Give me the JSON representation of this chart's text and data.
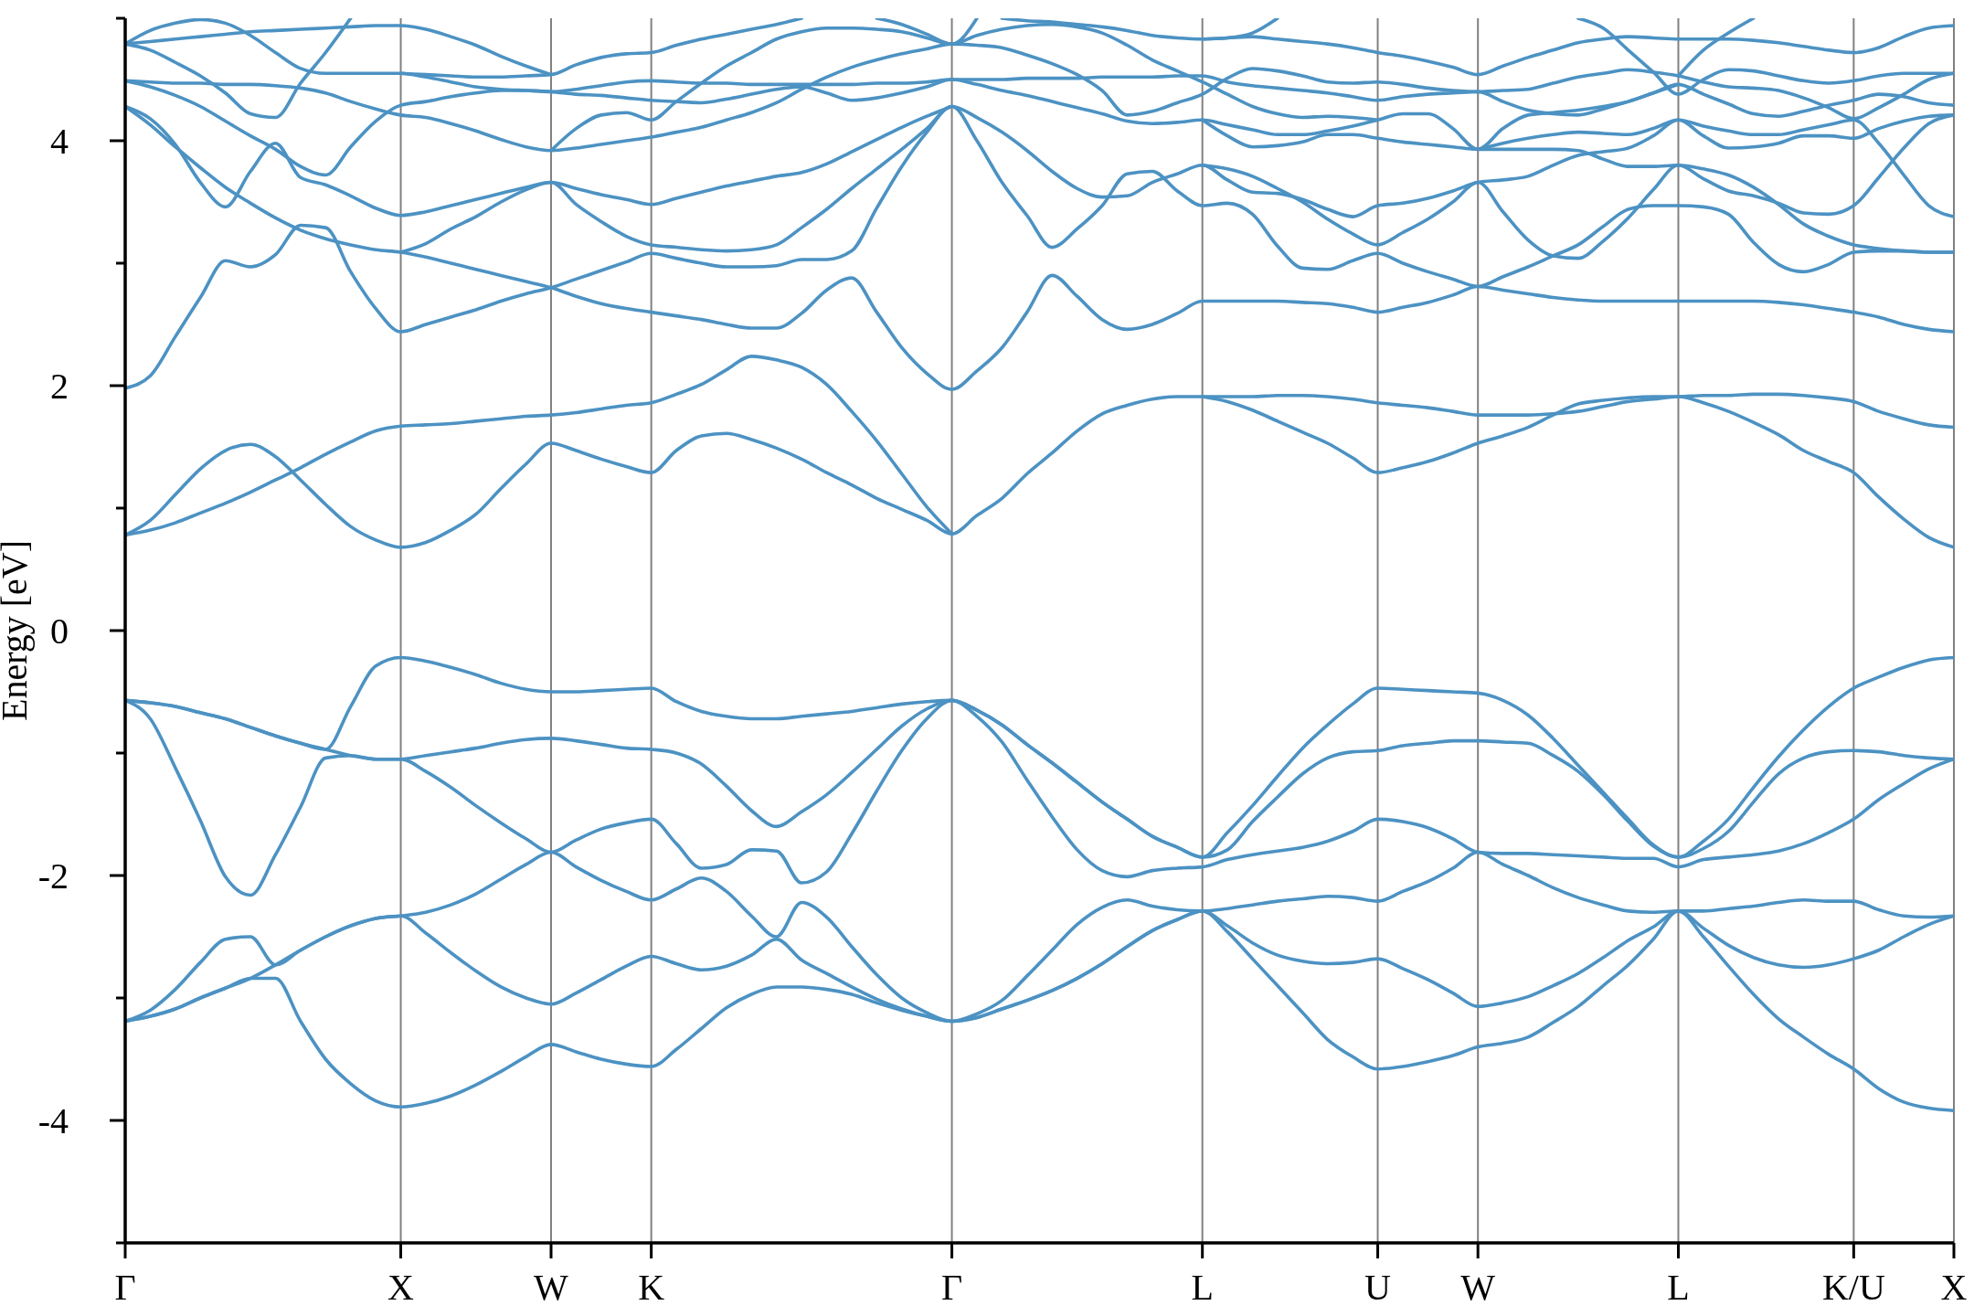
{
  "chart_data": {
    "type": "line",
    "ylabel": "Energy [eV]",
    "grid": "x",
    "categories": [
      "Γ",
      null,
      null,
      null,
      null,
      null,
      null,
      null,
      null,
      null,
      null,
      "X",
      null,
      null,
      null,
      null,
      null,
      "W",
      null,
      null,
      null,
      "K",
      null,
      null,
      null,
      null,
      null,
      null,
      null,
      null,
      null,
      null,
      null,
      "Γ",
      null,
      null,
      null,
      null,
      null,
      null,
      null,
      null,
      null,
      "L",
      null,
      null,
      null,
      null,
      null,
      null,
      "U",
      null,
      null,
      null,
      "W",
      null,
      null,
      null,
      null,
      null,
      null,
      null,
      "L",
      null,
      null,
      null,
      null,
      null,
      null,
      "K/U",
      null,
      null,
      null,
      "X"
    ],
    "ylim": [
      -5,
      5
    ],
    "yticks": [
      {
        "value": -5,
        "label": null
      },
      -4,
      {
        "value": -3,
        "label": null
      },
      -2,
      {
        "value": -1,
        "label": null
      },
      0,
      {
        "value": 1,
        "label": null
      },
      2,
      {
        "value": 3,
        "label": null
      },
      4,
      {
        "value": 5,
        "label": null
      }
    ],
    "series": [
      {
        "color": "#4c92c3",
        "values": [
          -3.19,
          -3.15,
          -3.09,
          -3,
          -2.92,
          -2.84,
          -2.84,
          -3.19,
          -3.5,
          -3.7,
          -3.84,
          -3.89,
          -3.86,
          -3.8,
          -3.71,
          -3.6,
          -3.48,
          -3.38,
          -3.44,
          -3.5,
          -3.54,
          -3.56,
          -3.42,
          -3.25,
          -3.08,
          -2.97,
          -2.91,
          -2.91,
          -2.93,
          -2.97,
          -3.04,
          -3.1,
          -3.15,
          -3.19,
          -3.16,
          -3.09,
          -3.02,
          -2.94,
          -2.84,
          -2.72,
          -2.58,
          -2.45,
          -2.36,
          -2.29,
          -2.46,
          -2.68,
          -2.9,
          -3.12,
          -3.34,
          -3.48,
          -3.58,
          -3.56,
          -3.52,
          -3.47,
          -3.4,
          -3.37,
          -3.32,
          -3.2,
          -3.07,
          -2.9,
          -2.73,
          -2.52,
          -2.29,
          -2.5,
          -2.74,
          -2.97,
          -3.17,
          -3.32,
          -3.46,
          -3.58,
          -3.74,
          -3.85,
          -3.9,
          -3.92
        ]
      },
      {
        "color": "#4c92c3",
        "values": [
          -3.19,
          -3.15,
          -3.09,
          -3,
          -2.92,
          -2.84,
          -2.73,
          -2.61,
          -2.5,
          -2.41,
          -2.35,
          -2.33,
          -2.47,
          -2.63,
          -2.78,
          -2.91,
          -3,
          -3.05,
          -2.96,
          -2.85,
          -2.74,
          -2.66,
          -2.72,
          -2.77,
          -2.74,
          -2.65,
          -2.52,
          -2.69,
          -2.8,
          -2.91,
          -3.01,
          -3.09,
          -3.15,
          -3.19,
          -3.16,
          -3.09,
          -3.02,
          -2.94,
          -2.84,
          -2.72,
          -2.58,
          -2.45,
          -2.36,
          -2.29,
          -2.41,
          -2.55,
          -2.65,
          -2.7,
          -2.72,
          -2.71,
          -2.68,
          -2.76,
          -2.85,
          -2.96,
          -3.07,
          -3.04,
          -2.99,
          -2.9,
          -2.8,
          -2.67,
          -2.53,
          -2.42,
          -2.29,
          -2.43,
          -2.57,
          -2.67,
          -2.73,
          -2.75,
          -2.73,
          -2.68,
          -2.61,
          -2.5,
          -2.4,
          -2.33
        ]
      },
      {
        "color": "#4c92c3",
        "values": [
          -3.19,
          -3.1,
          -2.93,
          -2.71,
          -2.52,
          -2.5,
          -2.73,
          -2.61,
          -2.5,
          -2.41,
          -2.35,
          -2.33,
          -2.3,
          -2.24,
          -2.15,
          -2.03,
          -1.91,
          -1.81,
          -1.93,
          -2.04,
          -2.13,
          -2.2,
          -2.11,
          -2.02,
          -2.13,
          -2.33,
          -2.5,
          -2.22,
          -2.34,
          -2.58,
          -2.81,
          -3,
          -3.12,
          -3.19,
          -3.13,
          -3.02,
          -2.82,
          -2.61,
          -2.4,
          -2.26,
          -2.2,
          -2.25,
          -2.28,
          -2.29,
          -2.27,
          -2.24,
          -2.21,
          -2.19,
          -2.17,
          -2.18,
          -2.21,
          -2.13,
          -2.05,
          -1.94,
          -1.81,
          -1.91,
          -2,
          -2.1,
          -2.18,
          -2.24,
          -2.29,
          -2.3,
          -2.29,
          -2.29,
          -2.27,
          -2.25,
          -2.22,
          -2.2,
          -2.21,
          -2.21,
          -2.28,
          -2.33,
          -2.34,
          -2.33
        ]
      },
      {
        "color": "#4c92c3",
        "values": [
          -0.57,
          -0.72,
          -1.12,
          -1.55,
          -2.01,
          -2.16,
          -1.83,
          -1.44,
          -1.04,
          -1.02,
          -1.05,
          -1.05,
          -1.15,
          -1.28,
          -1.43,
          -1.57,
          -1.7,
          -1.81,
          -1.71,
          -1.62,
          -1.57,
          -1.54,
          -1.74,
          -1.94,
          -1.91,
          -1.79,
          -1.8,
          -2.06,
          -1.97,
          -1.66,
          -1.31,
          -0.98,
          -0.72,
          -0.57,
          -0.7,
          -0.91,
          -1.22,
          -1.52,
          -1.79,
          -1.96,
          -2.01,
          -1.96,
          -1.94,
          -1.93,
          -1.87,
          -1.83,
          -1.8,
          -1.77,
          -1.72,
          -1.64,
          -1.54,
          -1.56,
          -1.61,
          -1.7,
          -1.81,
          -1.82,
          -1.82,
          -1.83,
          -1.84,
          -1.85,
          -1.86,
          -1.86,
          -1.93,
          -1.87,
          -1.85,
          -1.83,
          -1.8,
          -1.74,
          -1.65,
          -1.54,
          -1.38,
          -1.25,
          -1.13,
          -1.05
        ]
      },
      {
        "color": "#4c92c3",
        "values": [
          -0.57,
          -0.59,
          -0.62,
          -0.67,
          -0.72,
          -0.79,
          -0.86,
          -0.92,
          -0.97,
          -1.02,
          -1.05,
          -1.05,
          -1.02,
          -0.99,
          -0.96,
          -0.92,
          -0.89,
          -0.88,
          -0.9,
          -0.93,
          -0.96,
          -0.97,
          -1,
          -1.09,
          -1.27,
          -1.47,
          -1.6,
          -1.48,
          -1.34,
          -1.16,
          -0.97,
          -0.78,
          -0.64,
          -0.57,
          -0.65,
          -0.77,
          -0.93,
          -1.08,
          -1.24,
          -1.4,
          -1.54,
          -1.68,
          -1.77,
          -1.85,
          -1.79,
          -1.56,
          -1.36,
          -1.17,
          -1.04,
          -0.99,
          -0.98,
          -0.94,
          -0.92,
          -0.9,
          -0.9,
          -0.91,
          -0.92,
          -1.02,
          -1.15,
          -1.34,
          -1.56,
          -1.76,
          -1.85,
          -1.78,
          -1.64,
          -1.4,
          -1.17,
          -1.04,
          -0.99,
          -0.98,
          -0.99,
          -1.02,
          -1.04,
          -1.05
        ]
      },
      {
        "color": "#4c92c3",
        "values": [
          -0.57,
          -0.59,
          -0.62,
          -0.67,
          -0.72,
          -0.79,
          -0.86,
          -0.92,
          -0.97,
          -0.62,
          -0.29,
          -0.22,
          -0.25,
          -0.3,
          -0.36,
          -0.43,
          -0.48,
          -0.5,
          -0.5,
          -0.49,
          -0.48,
          -0.47,
          -0.58,
          -0.66,
          -0.7,
          -0.72,
          -0.72,
          -0.7,
          -0.68,
          -0.66,
          -0.63,
          -0.6,
          -0.58,
          -0.57,
          -0.65,
          -0.77,
          -0.93,
          -1.08,
          -1.24,
          -1.4,
          -1.54,
          -1.68,
          -1.77,
          -1.85,
          -1.65,
          -1.43,
          -1.19,
          -0.96,
          -0.77,
          -0.6,
          -0.47,
          -0.48,
          -0.49,
          -0.5,
          -0.51,
          -0.57,
          -0.69,
          -0.88,
          -1.1,
          -1.32,
          -1.54,
          -1.75,
          -1.85,
          -1.72,
          -1.54,
          -1.28,
          -1.03,
          -0.81,
          -0.62,
          -0.47,
          -0.38,
          -0.3,
          -0.24,
          -0.22
        ]
      },
      {
        "color": "#4c92c3",
        "values": [
          0.78,
          0.9,
          1.11,
          1.32,
          1.47,
          1.52,
          1.42,
          1.23,
          1.03,
          0.85,
          0.74,
          0.68,
          0.72,
          0.82,
          0.95,
          1.16,
          1.36,
          1.53,
          1.47,
          1.4,
          1.34,
          1.29,
          1.47,
          1.59,
          1.61,
          1.56,
          1.49,
          1.4,
          1.29,
          1.19,
          1.08,
          0.99,
          0.9,
          0.79,
          0.94,
          1.08,
          1.28,
          1.45,
          1.63,
          1.77,
          1.84,
          1.89,
          1.91,
          1.91,
          1.91,
          1.91,
          1.92,
          1.92,
          1.91,
          1.89,
          1.86,
          1.84,
          1.82,
          1.79,
          1.76,
          1.76,
          1.76,
          1.77,
          1.79,
          1.83,
          1.87,
          1.89,
          1.91,
          1.86,
          1.79,
          1.7,
          1.6,
          1.47,
          1.38,
          1.29,
          1.09,
          0.91,
          0.76,
          0.68
        ]
      },
      {
        "color": "#4c92c3",
        "values": [
          0.78,
          0.82,
          0.88,
          0.96,
          1.04,
          1.13,
          1.23,
          1.33,
          1.44,
          1.54,
          1.63,
          1.67,
          1.68,
          1.69,
          1.71,
          1.73,
          1.75,
          1.76,
          1.78,
          1.81,
          1.84,
          1.86,
          1.93,
          2.01,
          2.13,
          2.24,
          2.21,
          2.15,
          2.01,
          1.79,
          1.55,
          1.28,
          1.01,
          0.79,
          null,
          null,
          null,
          null,
          null,
          null,
          null,
          null,
          null,
          null,
          null,
          null,
          null,
          null,
          null,
          null,
          null,
          null,
          null,
          null,
          null,
          null,
          null,
          null,
          null,
          null,
          null,
          null,
          null,
          null,
          null,
          null,
          null,
          null,
          null,
          null,
          null,
          null,
          null,
          null
        ]
      },
      {
        "color": "#4c92c3",
        "values": [
          1.98,
          2.08,
          2.4,
          2.72,
          3.02,
          2.97,
          3.07,
          3.31,
          3.29,
          2.93,
          2.63,
          2.44,
          2.5,
          2.56,
          2.62,
          2.69,
          2.75,
          2.8,
          2.87,
          2.94,
          3.01,
          3.08,
          3.04,
          3,
          2.97,
          2.97,
          2.98,
          3.03,
          3.03,
          3.1,
          3.45,
          3.79,
          4.07,
          4.28,
          4,
          3.66,
          3.39,
          3.13,
          3.28,
          3.47,
          3.73,
          3.75,
          3.59,
          3.47,
          3.49,
          3.4,
          3.14,
          2.96,
          2.95,
          3.02,
          3.08,
          3,
          2.93,
          2.87,
          2.81,
          2.89,
          2.97,
          3.06,
          3.15,
          3.3,
          3.44,
          3.47,
          3.47,
          3.46,
          3.4,
          3.17,
          2.99,
          2.93,
          2.99,
          3.09,
          3.1,
          3.1,
          3.09,
          3.09
        ]
      },
      {
        "color": "#4c92c3",
        "values": [
          4.28,
          4.13,
          3.95,
          3.78,
          3.62,
          3.49,
          3.37,
          3.27,
          3.2,
          3.15,
          3.11,
          3.09,
          3.05,
          3,
          2.95,
          2.9,
          2.85,
          2.8,
          2.73,
          2.67,
          2.63,
          2.6,
          2.57,
          2.54,
          2.5,
          2.47,
          2.47,
          2.59,
          2.78,
          2.88,
          2.6,
          2.31,
          2.1,
          1.97,
          2.12,
          2.31,
          2.6,
          2.9,
          2.73,
          2.54,
          2.46,
          2.5,
          2.59,
          2.69,
          2.69,
          2.69,
          2.69,
          2.68,
          2.67,
          2.64,
          2.6,
          2.64,
          2.68,
          2.74,
          2.81,
          2.78,
          2.75,
          2.72,
          2.7,
          2.69,
          2.69,
          2.69,
          2.69,
          2.69,
          2.69,
          2.69,
          2.68,
          2.66,
          2.63,
          2.6,
          2.56,
          2.5,
          2.46,
          2.44
        ]
      },
      {
        "color": "#4c92c3",
        "values": [
          4.28,
          4.18,
          3.97,
          3.66,
          3.46,
          3.75,
          3.98,
          3.7,
          3.64,
          3.55,
          3.45,
          3.39,
          3.42,
          3.47,
          3.52,
          3.57,
          3.62,
          3.66,
          3.48,
          3.34,
          3.22,
          3.15,
          3.13,
          3.11,
          3.1,
          3.11,
          3.15,
          3.29,
          3.44,
          3.61,
          3.77,
          3.93,
          4.1,
          4.28,
          4.19,
          4.07,
          3.92,
          3.75,
          3.61,
          3.54,
          3.55,
          3.66,
          3.73,
          3.8,
          3.68,
          3.58,
          3.57,
          3.52,
          3.44,
          3.38,
          3.47,
          3.49,
          3.53,
          3.59,
          3.66,
          3.68,
          3.71,
          3.8,
          3.88,
          3.91,
          3.94,
          4.04,
          4.17,
          4.04,
          3.94,
          3.95,
          3.98,
          4.04,
          4.04,
          4.02,
          4.1,
          4.16,
          4.2,
          4.21
        ]
      },
      {
        "color": "#4c92c3",
        "values": [
          null,
          null,
          null,
          null,
          null,
          null,
          null,
          null,
          null,
          null,
          null,
          3.09,
          3.16,
          3.28,
          3.38,
          3.5,
          3.6,
          3.66,
          3.61,
          3.56,
          3.52,
          3.48,
          3.53,
          3.58,
          3.63,
          3.67,
          3.71,
          3.74,
          3.81,
          3.91,
          4.01,
          4.11,
          4.2,
          4.28,
          null,
          null,
          null,
          null,
          null,
          null,
          null,
          null,
          null,
          null,
          null,
          null,
          null,
          null,
          null,
          null,
          null,
          null,
          null,
          null,
          null,
          null,
          null,
          null,
          null,
          null,
          null,
          null,
          null,
          null,
          null,
          null,
          null,
          null,
          null,
          null,
          null,
          null,
          null,
          null
        ]
      },
      {
        "color": "#4c92c3",
        "values": [
          4.49,
          4.48,
          4.47,
          4.47,
          4.46,
          4.46,
          4.45,
          4.43,
          4.39,
          4.32,
          4.26,
          4.21,
          4.19,
          4.14,
          4.08,
          4.01,
          3.95,
          3.92,
          3.94,
          3.97,
          4,
          4.03,
          4.07,
          4.11,
          4.17,
          4.23,
          4.31,
          4.42,
          4.52,
          4.6,
          4.66,
          4.71,
          4.75,
          4.79,
          4.78,
          4.76,
          4.7,
          4.63,
          4.54,
          4.41,
          4.21,
          4.24,
          4.31,
          4.38,
          4.51,
          4.59,
          4.57,
          4.53,
          4.48,
          4.47,
          4.48,
          4.46,
          4.43,
          4.41,
          4.4,
          4.41,
          4.42,
          4.47,
          4.52,
          4.55,
          4.58,
          4.56,
          4.53,
          4.48,
          4.44,
          4.43,
          4.41,
          4.35,
          4.27,
          4.18,
          4.27,
          4.38,
          4.5,
          4.55
        ]
      },
      {
        "color": "#4c92c3",
        "values": [
          4.49,
          4.44,
          4.37,
          4.28,
          4.16,
          4.04,
          3.93,
          3.79,
          3.72,
          3.95,
          4.16,
          4.29,
          4.32,
          4.36,
          4.39,
          4.41,
          4.41,
          4.4,
          4.38,
          4.37,
          4.35,
          4.33,
          4.32,
          4.31,
          4.34,
          4.38,
          4.42,
          4.44,
          4.39,
          4.33,
          4.35,
          4.39,
          4.44,
          4.5,
          4.5,
          4.5,
          4.51,
          4.51,
          4.51,
          4.52,
          4.52,
          4.52,
          4.53,
          4.53,
          4.48,
          4.45,
          4.43,
          4.41,
          4.39,
          4.36,
          4.33,
          4.36,
          4.38,
          4.39,
          4.4,
          4.32,
          4.25,
          4.22,
          4.21,
          4.26,
          4.32,
          4.39,
          4.46,
          null,
          null,
          null,
          null,
          null,
          null,
          null,
          null,
          null,
          null,
          null
        ]
      },
      {
        "color": "#4c92c3",
        "values": [
          4.79,
          4.9,
          4.96,
          4.99,
          4.96,
          4.86,
          4.72,
          4.59,
          4.55,
          4.55,
          4.55,
          4.55,
          4.52,
          4.48,
          4.44,
          4.42,
          4.41,
          4.4,
          4.42,
          4.45,
          4.48,
          4.49,
          4.48,
          4.47,
          4.47,
          4.46,
          4.46,
          4.46,
          4.46,
          4.46,
          4.47,
          4.47,
          4.48,
          4.5,
          4.46,
          4.41,
          4.37,
          4.32,
          4.27,
          4.22,
          4.16,
          4.14,
          4.15,
          4.17,
          4.13,
          4.09,
          4.05,
          4.05,
          4.08,
          4.12,
          4.17,
          4.22,
          4.22,
          4.1,
          3.93,
          3.93,
          3.93,
          3.93,
          3.92,
          3.85,
          3.79,
          3.79,
          3.8,
          3.77,
          3.72,
          3.62,
          3.48,
          3.32,
          3.22,
          3.15,
          3.12,
          3.1,
          3.09,
          3.09
        ]
      },
      {
        "color": "#4c92c3",
        "values": [
          4.79,
          4.81,
          4.83,
          4.85,
          4.87,
          4.89,
          4.9,
          4.91,
          4.92,
          4.93,
          4.94,
          4.94,
          4.91,
          4.85,
          4.78,
          4.69,
          4.61,
          4.54,
          null,
          null,
          null,
          null,
          null,
          null,
          null,
          null,
          null,
          null,
          null,
          null,
          null,
          null,
          null,
          null,
          null,
          null,
          null,
          null,
          null,
          null,
          null,
          null,
          null,
          null,
          null,
          null,
          null,
          null,
          null,
          null,
          null,
          null,
          null,
          null,
          null,
          null,
          null,
          null,
          null,
          null,
          null,
          null,
          null,
          null,
          null,
          null,
          null,
          null,
          null,
          null,
          null,
          null,
          null,
          null
        ]
      },
      {
        "color": "#4c92c3",
        "values": [
          4.79,
          4.74,
          4.64,
          4.53,
          4.39,
          4.22,
          4.19,
          4.47,
          4.72,
          5,
          null,
          null,
          null,
          null,
          null,
          null,
          null,
          null,
          null,
          null,
          null,
          null,
          null,
          null,
          null,
          null,
          null,
          null,
          null,
          null,
          null,
          null,
          null,
          null,
          null,
          null,
          null,
          null,
          null,
          null,
          null,
          null,
          null,
          null,
          null,
          null,
          null,
          null,
          null,
          null,
          null,
          null,
          null,
          null,
          null,
          null,
          null,
          null,
          null,
          null,
          null,
          null,
          null,
          null,
          null,
          null,
          null,
          null,
          null,
          null,
          null,
          null,
          null,
          null
        ]
      },
      {
        "color": "#4c92c3",
        "values": [
          null,
          null,
          null,
          null,
          null,
          null,
          null,
          null,
          null,
          null,
          null,
          4.55,
          4.54,
          4.53,
          4.52,
          4.52,
          4.53,
          4.54,
          4.62,
          4.68,
          4.71,
          4.72,
          4.78,
          4.83,
          4.87,
          4.91,
          4.95,
          5,
          null,
          null,
          null,
          null,
          null,
          null,
          null,
          null,
          null,
          null,
          null,
          null,
          null,
          null,
          null,
          null,
          null,
          null,
          null,
          null,
          null,
          null,
          null,
          null,
          null,
          null,
          null,
          null,
          null,
          null,
          null,
          null,
          null,
          null,
          null,
          null,
          null,
          null,
          null,
          null,
          null,
          null,
          null,
          null,
          null,
          null
        ]
      },
      {
        "color": "#4c92c3",
        "values": [
          null,
          null,
          null,
          null,
          null,
          null,
          null,
          null,
          null,
          null,
          null,
          null,
          null,
          null,
          null,
          null,
          null,
          3.92,
          4.1,
          4.21,
          4.23,
          4.17,
          4.32,
          4.47,
          4.61,
          4.72,
          4.83,
          4.89,
          4.92,
          4.92,
          4.91,
          4.89,
          4.84,
          4.79,
          4.86,
          4.91,
          4.94,
          4.95,
          4.93,
          4.88,
          4.78,
          4.66,
          4.57,
          4.48,
          4.38,
          4.28,
          4.22,
          4.19,
          4.2,
          4.19,
          4.17,
          null,
          null,
          null,
          null,
          null,
          null,
          null,
          null,
          null,
          null,
          null,
          null,
          null,
          null,
          null,
          null,
          null,
          null,
          null,
          null,
          null,
          null,
          null
        ]
      },
      {
        "color": "#4c92c3",
        "values": [
          null,
          null,
          null,
          null,
          null,
          null,
          null,
          null,
          null,
          null,
          null,
          null,
          null,
          null,
          null,
          null,
          null,
          null,
          null,
          null,
          null,
          null,
          null,
          null,
          null,
          null,
          null,
          null,
          null,
          null,
          5,
          4.95,
          4.87,
          4.79,
          5,
          null,
          null,
          null,
          null,
          null,
          null,
          null,
          null,
          null,
          null,
          null,
          null,
          null,
          null,
          null,
          null,
          null,
          null,
          null,
          null,
          null,
          null,
          null,
          null,
          null,
          null,
          null,
          null,
          null,
          null,
          null,
          null,
          null,
          null,
          null,
          null,
          null,
          null,
          null
        ]
      },
      {
        "color": "#4c92c3",
        "values": [
          null,
          null,
          null,
          null,
          null,
          null,
          null,
          null,
          null,
          null,
          null,
          null,
          null,
          null,
          null,
          null,
          null,
          null,
          null,
          null,
          null,
          null,
          null,
          null,
          null,
          null,
          null,
          null,
          null,
          null,
          null,
          null,
          null,
          null,
          null,
          5,
          4.98,
          4.97,
          4.95,
          4.93,
          4.9,
          4.86,
          4.84,
          4.83,
          4.84,
          4.85,
          4.83,
          4.81,
          4.79,
          4.76,
          4.72,
          4.69,
          4.65,
          4.6,
          4.54,
          4.61,
          4.68,
          4.74,
          4.8,
          4.83,
          4.85,
          4.84,
          4.83,
          4.83,
          4.83,
          4.82,
          4.8,
          4.77,
          4.74,
          4.72,
          4.76,
          4.85,
          4.92,
          4.94
        ]
      },
      {
        "color": "#4c92c3",
        "values": [
          null,
          null,
          null,
          null,
          null,
          null,
          null,
          null,
          null,
          null,
          null,
          null,
          null,
          null,
          null,
          null,
          null,
          null,
          null,
          null,
          null,
          null,
          null,
          null,
          null,
          null,
          null,
          null,
          null,
          null,
          null,
          null,
          null,
          null,
          null,
          null,
          null,
          null,
          null,
          null,
          null,
          null,
          null,
          1.91,
          1.87,
          1.8,
          1.71,
          1.62,
          1.53,
          1.41,
          1.29,
          1.33,
          1.38,
          1.45,
          1.53,
          1.59,
          1.66,
          1.76,
          1.85,
          1.88,
          1.9,
          1.91,
          1.91,
          1.92,
          1.92,
          1.93,
          1.93,
          1.92,
          1.9,
          1.87,
          1.79,
          1.73,
          1.68,
          1.66
        ]
      },
      {
        "color": "#4c92c3",
        "values": [
          null,
          null,
          null,
          null,
          null,
          null,
          null,
          null,
          null,
          null,
          null,
          null,
          null,
          null,
          null,
          null,
          null,
          null,
          null,
          null,
          null,
          null,
          null,
          null,
          null,
          null,
          null,
          null,
          null,
          null,
          null,
          null,
          null,
          null,
          null,
          null,
          null,
          null,
          null,
          null,
          null,
          null,
          null,
          3.8,
          3.77,
          3.71,
          3.61,
          3.5,
          3.36,
          3.24,
          3.15,
          3.25,
          3.36,
          3.5,
          3.66,
          3.42,
          3.19,
          3.06,
          3.04,
          3.18,
          3.37,
          3.6,
          3.8,
          3.69,
          3.59,
          3.55,
          3.49,
          3.41,
          3.4,
          3.47,
          3.7,
          3.94,
          4.14,
          4.21
        ]
      },
      {
        "color": "#4c92c3",
        "values": [
          null,
          null,
          null,
          null,
          null,
          null,
          null,
          null,
          null,
          null,
          null,
          null,
          null,
          null,
          null,
          null,
          null,
          null,
          null,
          null,
          null,
          null,
          null,
          null,
          null,
          null,
          null,
          null,
          null,
          null,
          null,
          null,
          null,
          null,
          null,
          null,
          null,
          null,
          null,
          null,
          null,
          null,
          null,
          4.17,
          4.04,
          3.95,
          3.96,
          3.99,
          4.05,
          4.05,
          4.02,
          3.99,
          3.97,
          3.95,
          3.93,
          4.1,
          4.21,
          4.23,
          4.25,
          4.28,
          4.32,
          4.39,
          4.46,
          4.38,
          4.3,
          4.22,
          4.2,
          4.24,
          4.29,
          4.33,
          4.38,
          4.36,
          4.31,
          4.29
        ]
      },
      {
        "color": "#4c92c3",
        "values": [
          null,
          null,
          null,
          null,
          null,
          null,
          null,
          null,
          null,
          null,
          null,
          null,
          null,
          null,
          null,
          null,
          null,
          null,
          null,
          null,
          null,
          null,
          null,
          null,
          null,
          null,
          null,
          null,
          null,
          null,
          null,
          null,
          null,
          null,
          null,
          null,
          null,
          null,
          null,
          null,
          null,
          null,
          null,
          4.83,
          4.84,
          4.88,
          5,
          null,
          null,
          null,
          null,
          null,
          null,
          null,
          null,
          null,
          null,
          null,
          null,
          null,
          null,
          null,
          null,
          null,
          null,
          null,
          null,
          null,
          null,
          null,
          null,
          null,
          null,
          null
        ]
      },
      {
        "color": "#4c92c3",
        "values": [
          null,
          null,
          null,
          null,
          null,
          null,
          null,
          null,
          null,
          null,
          null,
          null,
          null,
          null,
          null,
          null,
          null,
          null,
          null,
          null,
          null,
          null,
          null,
          null,
          null,
          null,
          null,
          null,
          null,
          null,
          null,
          null,
          null,
          null,
          null,
          null,
          null,
          null,
          null,
          null,
          null,
          null,
          null,
          null,
          null,
          null,
          null,
          null,
          null,
          null,
          null,
          null,
          null,
          null,
          3.93,
          3.98,
          4.02,
          4.05,
          4.07,
          4.06,
          4.05,
          4.1,
          4.17,
          4.12,
          4.08,
          4.05,
          4.05,
          4.09,
          4.13,
          4.17,
          3.98,
          3.72,
          3.47,
          3.38
        ]
      },
      {
        "color": "#4c92c3",
        "values": [
          null,
          null,
          null,
          null,
          null,
          null,
          null,
          null,
          null,
          null,
          null,
          null,
          null,
          null,
          null,
          null,
          null,
          null,
          null,
          null,
          null,
          null,
          null,
          null,
          null,
          null,
          null,
          null,
          null,
          null,
          null,
          null,
          null,
          null,
          null,
          null,
          null,
          null,
          null,
          null,
          null,
          null,
          null,
          null,
          null,
          null,
          null,
          null,
          null,
          null,
          null,
          null,
          null,
          null,
          null,
          null,
          null,
          null,
          5,
          4.92,
          4.74,
          4.56,
          4.38,
          4.5,
          4.58,
          4.57,
          4.53,
          4.49,
          4.47,
          4.49,
          4.53,
          4.55,
          4.55,
          4.55
        ]
      },
      {
        "color": "#4c92c3",
        "values": [
          null,
          null,
          null,
          null,
          null,
          null,
          null,
          null,
          null,
          null,
          null,
          null,
          null,
          null,
          null,
          null,
          null,
          null,
          null,
          null,
          null,
          null,
          null,
          null,
          null,
          null,
          null,
          null,
          null,
          null,
          null,
          null,
          null,
          null,
          null,
          null,
          null,
          null,
          null,
          null,
          null,
          null,
          null,
          null,
          null,
          null,
          null,
          null,
          null,
          null,
          null,
          null,
          null,
          null,
          null,
          null,
          null,
          null,
          null,
          null,
          null,
          null,
          4.53,
          4.74,
          4.88,
          5,
          null,
          null,
          null,
          null,
          null,
          null,
          null,
          null
        ]
      }
    ]
  }
}
